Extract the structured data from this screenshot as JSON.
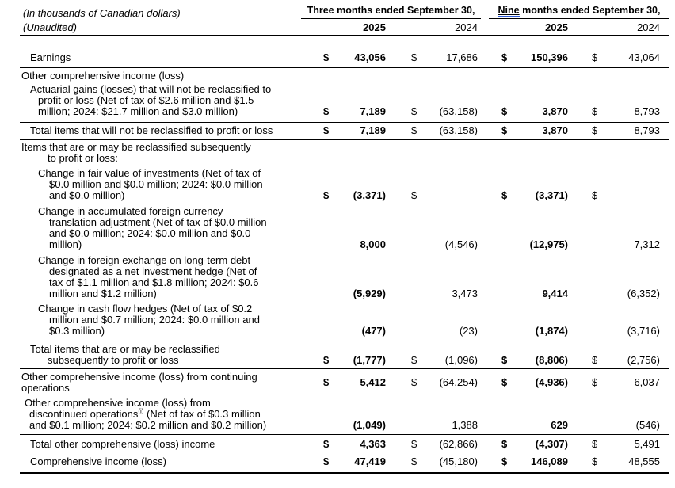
{
  "header": {
    "left_line1": "(In thousands of Canadian dollars)",
    "left_line2": "(Unaudited)",
    "group1": "Three months ended September 30,",
    "group2_underlined_word": "Nine",
    "group2_rest": " months ended September 30,",
    "years": [
      "2025",
      "2024",
      "2025",
      "2024"
    ],
    "underline_color": "#2e5bd7",
    "text_color": "#000000",
    "background_color": "#ffffff"
  },
  "rows": [
    {
      "name": "row-earnings",
      "indent": "ind1",
      "label": "Earnings",
      "dollar": true,
      "rule_bottom": true,
      "values": [
        "43,056",
        "17,686",
        "150,396",
        "43,064"
      ]
    },
    {
      "name": "row-oci-heading",
      "indent": "ind0",
      "label": "Other comprehensive income (loss)",
      "dollar": false,
      "values": null
    },
    {
      "name": "row-actuarial",
      "indent": "ind1",
      "label": "Actuarial gains (losses) that will not be reclassified to\nprofit or loss (Net of tax of $2.6 million and $1.5\nmillion; 2024: $21.7 million and $3.0 million)",
      "dollar": true,
      "rule_bottom": true,
      "values": [
        "7,189",
        "(63,158)",
        "3,870",
        "8,793"
      ]
    },
    {
      "name": "row-total-not-reclassified",
      "indent": "ind1",
      "label": "Total items that will not be reclassified to profit or loss",
      "dollar": true,
      "rule_bottom": true,
      "values": [
        "7,189",
        "(63,158)",
        "3,870",
        "8,793"
      ]
    },
    {
      "name": "row-items-may-heading",
      "indent": "ind0h",
      "label": "Items that are or may be reclassified subsequently\nto profit or loss:",
      "dollar": false,
      "values": null
    },
    {
      "name": "row-fair-value",
      "indent": "ind2",
      "label": "Change in fair value of investments (Net of tax of\n$0.0 million and $0.0 million; 2024: $0.0 million\nand $0.0 million)",
      "dollar": true,
      "values": [
        "(3,371)",
        "—",
        "(3,371)",
        "—"
      ]
    },
    {
      "name": "row-fx-translation",
      "indent": "ind2",
      "label": "Change in accumulated foreign currency\ntranslation adjustment (Net of tax of $0.0 million\nand $0.0 million; 2024: $0.0 million and $0.0\nmillion)",
      "dollar": false,
      "values": [
        "8,000",
        "(4,546)",
        "(12,975)",
        "7,312"
      ]
    },
    {
      "name": "row-net-investment-hedge",
      "indent": "ind2",
      "label": "Change in foreign exchange on long-term debt\ndesignated as a net investment hedge (Net of\ntax of $1.1 million and $1.8 million; 2024: $0.6\nmillion and $1.2 million)",
      "dollar": false,
      "values": [
        "(5,929)",
        "3,473",
        "9,414",
        "(6,352)"
      ]
    },
    {
      "name": "row-cash-flow-hedges",
      "indent": "ind2",
      "label": "Change in cash flow hedges (Net of tax of $0.2\nmillion and $0.7 million; 2024: $0.0 million and\n$0.3 million)",
      "dollar": false,
      "rule_bottom": true,
      "values": [
        "(477)",
        "(23)",
        "(1,874)",
        "(3,716)"
      ]
    },
    {
      "name": "row-total-may-reclassified",
      "indent": "ind1h",
      "label": "Total items that are or may be reclassified\nsubsequently to profit or loss",
      "dollar": true,
      "rule_bottom": true,
      "values": [
        "(1,777)",
        "(1,096)",
        "(8,806)",
        "(2,756)"
      ]
    },
    {
      "name": "row-oci-continuing",
      "indent": "ind0",
      "label": "Other comprehensive income (loss) from continuing\noperations",
      "dollar": true,
      "valign": "center",
      "values": [
        "5,412",
        "(64,254)",
        "(4,936)",
        "6,037"
      ]
    },
    {
      "name": "row-oci-discontinued",
      "indent": "ind1b",
      "label": "Other comprehensive income (loss) from\ndiscontinued operations",
      "sup": "(i)",
      "label2": " (Net of tax of $0.3 million\nand $0.1 million; 2024: $0.2 million and $0.2 million)",
      "dollar": false,
      "rule_bottom": true,
      "values": [
        "(1,049)",
        "1,388",
        "629",
        "(546)"
      ]
    },
    {
      "name": "row-total-oci",
      "indent": "ind1",
      "label": "Total other comprehensive (loss) income",
      "dollar": true,
      "values": [
        "4,363",
        "(62,866)",
        "(4,307)",
        "5,491"
      ]
    },
    {
      "name": "row-comprehensive-income",
      "indent": "ind1",
      "label": "Comprehensive income (loss)",
      "dollar": true,
      "rule_bottom": true,
      "values": [
        "47,419",
        "(45,180)",
        "146,089",
        "48,555"
      ]
    }
  ],
  "bold_value_columns": [
    0,
    2
  ],
  "dollar_sign": "$"
}
